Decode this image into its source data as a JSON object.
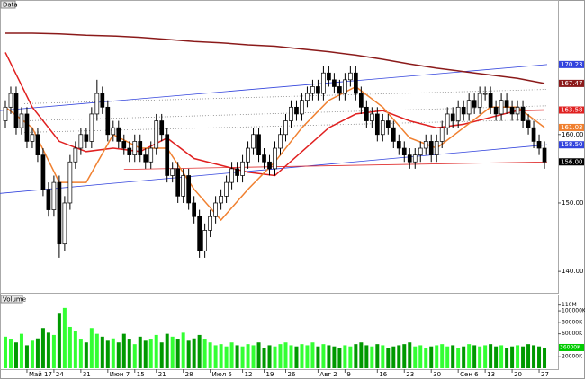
{
  "chart_data": {
    "type": "candlestick",
    "title": "Data",
    "x": [
      0,
      1,
      2,
      3,
      4,
      5,
      6,
      7,
      8,
      9,
      10,
      11,
      12,
      13,
      14,
      15,
      16,
      17,
      18,
      19,
      20,
      21,
      22,
      23,
      24,
      25,
      26,
      27,
      28,
      29,
      30,
      31,
      32,
      33,
      34,
      35,
      36,
      37,
      38,
      39,
      40,
      41,
      42,
      43,
      44,
      45,
      46,
      47,
      48,
      49,
      50,
      51,
      52,
      53,
      54,
      55,
      56,
      57,
      58,
      59,
      60,
      61,
      62,
      63,
      64,
      65,
      66,
      67,
      68,
      69,
      70,
      71,
      72,
      73,
      74,
      75,
      76,
      77,
      78,
      79,
      80,
      81,
      82,
      83,
      84,
      85,
      86,
      87,
      88,
      89,
      90,
      91,
      92,
      93,
      94,
      95,
      96,
      97,
      98,
      99,
      100
    ],
    "open": [
      162,
      164,
      166,
      161,
      163,
      159,
      160,
      157,
      152,
      149,
      153,
      144,
      150,
      156,
      158,
      160,
      159,
      163,
      166,
      164,
      160,
      161,
      159,
      158,
      157,
      159,
      157,
      156,
      158,
      162,
      160,
      154,
      155,
      151,
      154,
      150,
      148,
      143,
      146,
      148,
      150,
      151,
      153,
      155,
      154,
      156,
      158,
      160,
      157,
      156,
      155,
      158,
      160,
      162,
      164,
      163,
      165,
      166,
      167,
      166,
      169,
      168,
      167,
      166,
      168,
      169,
      166,
      164,
      162,
      163,
      160,
      162,
      161,
      159,
      158,
      157,
      156,
      157,
      158,
      159,
      157,
      159,
      161,
      163,
      162,
      164,
      163,
      165,
      164,
      166,
      166,
      164,
      163,
      165,
      164,
      163,
      164,
      162,
      161,
      159,
      158
    ],
    "high": [
      165,
      167,
      167,
      164,
      164,
      161,
      161,
      158,
      153,
      154,
      154,
      151,
      157,
      159,
      161,
      161,
      164,
      168,
      167,
      165,
      162,
      162,
      160,
      159,
      160,
      160,
      158,
      159,
      163,
      163,
      161,
      156,
      156,
      155,
      155,
      151,
      149,
      147,
      149,
      151,
      152,
      154,
      156,
      156,
      157,
      159,
      161,
      161,
      158,
      157,
      159,
      161,
      163,
      165,
      165,
      166,
      167,
      168,
      168,
      170,
      170,
      169,
      168,
      169,
      170,
      170,
      167,
      165,
      164,
      164,
      163,
      163,
      162,
      160,
      159,
      158,
      158,
      159,
      160,
      160,
      160,
      162,
      164,
      164,
      165,
      165,
      166,
      166,
      167,
      167,
      167,
      165,
      166,
      166,
      165,
      165,
      165,
      163,
      162,
      160,
      159
    ],
    "low": [
      161,
      163,
      160,
      160,
      158,
      158,
      156,
      151,
      148,
      148,
      142,
      143,
      149,
      155,
      157,
      158,
      158,
      162,
      163,
      159,
      159,
      158,
      157,
      156,
      156,
      156,
      155,
      155,
      157,
      159,
      153,
      153,
      150,
      150,
      149,
      147,
      142,
      142,
      145,
      147,
      149,
      150,
      152,
      153,
      153,
      155,
      157,
      156,
      155,
      154,
      154,
      157,
      159,
      161,
      162,
      162,
      164,
      165,
      165,
      165,
      167,
      166,
      165,
      165,
      167,
      165,
      163,
      161,
      161,
      159,
      159,
      160,
      158,
      157,
      156,
      155,
      155,
      156,
      157,
      156,
      156,
      158,
      160,
      161,
      161,
      162,
      162,
      163,
      163,
      165,
      163,
      162,
      162,
      163,
      162,
      162,
      161,
      160,
      158,
      157,
      155
    ],
    "close": [
      164,
      166,
      161,
      163,
      159,
      160,
      157,
      152,
      149,
      153,
      144,
      150,
      156,
      158,
      160,
      159,
      163,
      166,
      164,
      160,
      161,
      159,
      158,
      157,
      159,
      157,
      156,
      158,
      162,
      160,
      154,
      155,
      151,
      154,
      150,
      148,
      143,
      146,
      148,
      150,
      151,
      153,
      155,
      154,
      156,
      158,
      160,
      157,
      156,
      155,
      158,
      160,
      162,
      164,
      163,
      165,
      166,
      167,
      166,
      169,
      168,
      167,
      166,
      168,
      169,
      166,
      164,
      162,
      163,
      160,
      162,
      161,
      159,
      158,
      157,
      156,
      157,
      158,
      159,
      157,
      159,
      161,
      163,
      162,
      164,
      163,
      165,
      164,
      166,
      166,
      164,
      163,
      165,
      164,
      163,
      164,
      162,
      161,
      159,
      158,
      156
    ],
    "up_color": "#ffffff",
    "down_color": "#000000",
    "xlim": [
      -1,
      102.5
    ],
    "xticks": [
      {
        "value": 4,
        "label": "Май 17"
      },
      {
        "value": 9,
        "label": "24"
      },
      {
        "value": 14,
        "label": "31"
      },
      {
        "value": 19,
        "label": "Июн 7"
      },
      {
        "value": 24,
        "label": "15"
      },
      {
        "value": 28,
        "label": "21"
      },
      {
        "value": 33,
        "label": "28"
      },
      {
        "value": 38,
        "label": "Июл 5"
      },
      {
        "value": 44,
        "label": "12"
      },
      {
        "value": 48,
        "label": "19"
      },
      {
        "value": 52,
        "label": "26"
      },
      {
        "value": 58,
        "label": "Авг 2"
      },
      {
        "value": 63,
        "label": "9"
      },
      {
        "value": 69,
        "label": "16"
      },
      {
        "value": 74,
        "label": "23"
      },
      {
        "value": 79,
        "label": "30"
      },
      {
        "value": 84,
        "label": "Сен 6"
      },
      {
        "value": 89,
        "label": "13"
      },
      {
        "value": 94,
        "label": "20"
      },
      {
        "value": 99,
        "label": "27"
      }
    ],
    "ylim": [
      137,
      179.4
    ],
    "yticks": [
      {
        "value": 140,
        "label": "140.00"
      },
      {
        "value": 150,
        "label": "150.00"
      },
      {
        "value": 160,
        "label": "160.00"
      },
      {
        "value": 170,
        "label": "170.00"
      }
    ],
    "indicators": [
      {
        "color": "#8b1a1a",
        "x": [
          0,
          5,
          10,
          15,
          20,
          25,
          30,
          35,
          40,
          45,
          50,
          55,
          60,
          65,
          70,
          75,
          80,
          85,
          90,
          95,
          100
        ],
        "values": [
          174.8,
          174.8,
          174.7,
          174.5,
          174.4,
          174.2,
          173.9,
          173.6,
          173.4,
          173.1,
          172.9,
          172.5,
          172.1,
          171.6,
          171.0,
          170.3,
          169.7,
          169.2,
          168.7,
          168.2,
          167.47
        ]
      },
      {
        "color": "#e02020",
        "x": [
          0,
          5,
          10,
          15,
          20,
          25,
          30,
          35,
          40,
          45,
          50,
          55,
          60,
          65,
          70,
          75,
          80,
          85,
          90,
          95,
          100
        ],
        "values": [
          172,
          164,
          159,
          157.5,
          158,
          157.5,
          159.5,
          156.5,
          155.5,
          154.5,
          154,
          157.5,
          161,
          163,
          163.5,
          162,
          161,
          161.5,
          162.5,
          163.5,
          163.58
        ]
      },
      {
        "color": "#f08030",
        "x": [
          0,
          5,
          10,
          15,
          20,
          25,
          30,
          35,
          40,
          45,
          50,
          55,
          60,
          65,
          70,
          75,
          80,
          85,
          90,
          95,
          100
        ],
        "values": [
          164,
          161,
          153,
          153,
          160,
          158,
          158,
          152,
          147.5,
          152,
          156,
          161,
          165,
          167,
          164,
          159.5,
          158,
          161,
          164,
          164,
          161.03
        ]
      }
    ],
    "trendlines": [
      {
        "color": "#3344dd",
        "style": "solid",
        "x": [
          -1,
          100.5
        ],
        "values": [
          163.5,
          170.23
        ]
      },
      {
        "color": "#3344dd",
        "style": "solid",
        "x": [
          -1,
          100.5
        ],
        "values": [
          151.4,
          158.5
        ]
      },
      {
        "color": "#e03030",
        "style": "solid",
        "x": [
          22,
          100.5
        ],
        "values": [
          154.9,
          156
        ]
      },
      {
        "color": "#888888",
        "style": "dotted",
        "x": [
          3,
          100.5
        ],
        "values": [
          164.5,
          166.6
        ]
      },
      {
        "color": "#888888",
        "style": "dotted",
        "x": [
          3,
          100.5
        ],
        "values": [
          162,
          164.2
        ]
      },
      {
        "color": "#888888",
        "style": "dotted",
        "x": [
          3,
          100.5
        ],
        "values": [
          160.3,
          162.2
        ]
      }
    ],
    "price_markers": [
      {
        "value": 170.23,
        "label": "170.23",
        "color": "#3344dd"
      },
      {
        "value": 167.47,
        "label": "167.47",
        "color": "#8b1a1a"
      },
      {
        "value": 163.58,
        "label": "163.58",
        "color": "#e02020"
      },
      {
        "value": 161.03,
        "label": "161.03",
        "color": "#f08030"
      },
      {
        "value": 158.5,
        "label": "158.50",
        "color": "#3344dd"
      },
      {
        "value": 156,
        "label": "156.00",
        "color": "#000000"
      }
    ],
    "volume": {
      "title": "Volume",
      "values": [
        55000,
        50000,
        45000,
        60000,
        40000,
        48000,
        52000,
        70000,
        62000,
        58000,
        95000,
        105000,
        72000,
        65000,
        50000,
        45000,
        70000,
        60000,
        55000,
        48000,
        52000,
        45000,
        60000,
        50000,
        42000,
        55000,
        48000,
        50000,
        58000,
        45000,
        60000,
        55000,
        50000,
        62000,
        48000,
        52000,
        58000,
        50000,
        45000,
        40000,
        42000,
        38000,
        45000,
        40000,
        38000,
        42000,
        40000,
        45000,
        35000,
        40000,
        38000,
        42000,
        45000,
        40000,
        38000,
        42000,
        40000,
        45000,
        38000,
        42000,
        40000,
        38000,
        35000,
        40000,
        38000,
        42000,
        45000,
        40000,
        38000,
        42000,
        40000,
        35000,
        38000,
        40000,
        42000,
        45000,
        38000,
        40000,
        35000,
        38000,
        40000,
        42000,
        38000,
        40000,
        35000,
        38000,
        42000,
        40000,
        38000,
        40000,
        42000,
        38000,
        40000,
        35000,
        38000,
        40000,
        38000,
        42000,
        40000,
        38000,
        36000
      ],
      "up_color": "#33ff33",
      "down_color": "#009900",
      "ylim": [
        0,
        122000
      ],
      "yticks": [
        {
          "value": 20000,
          "label": "20000K"
        },
        {
          "value": 60000,
          "label": "60000K"
        },
        {
          "value": 80000,
          "label": "80000K"
        },
        {
          "value": 100000,
          "label": "100000K"
        },
        {
          "value": 110000,
          "label": "110M"
        }
      ],
      "marker": {
        "value": 36000,
        "label": "36000K",
        "color": "#00cc00"
      }
    }
  }
}
